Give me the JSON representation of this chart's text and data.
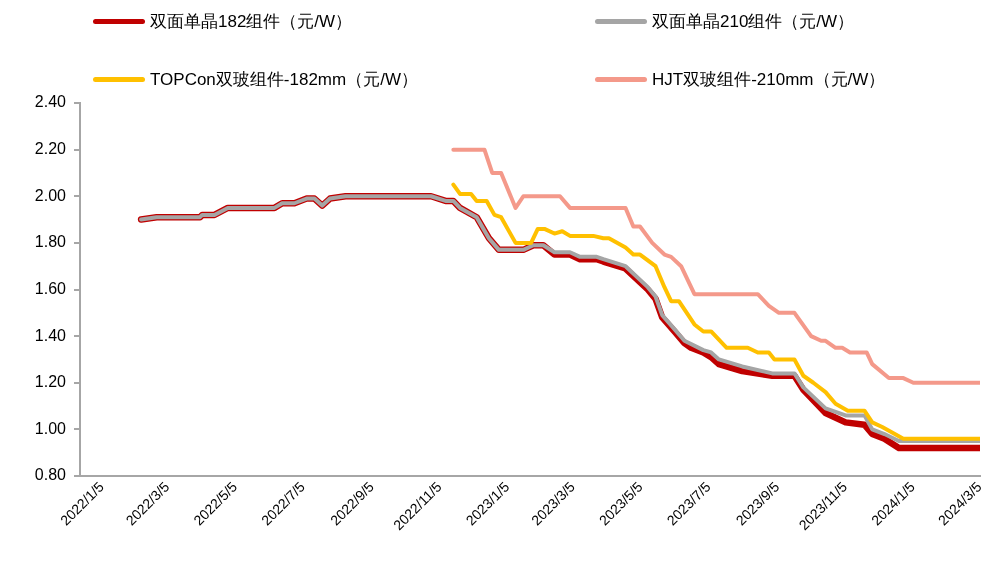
{
  "chart_data": {
    "type": "line",
    "legend": "top",
    "grid": false,
    "marker": "none",
    "line_style": "solid",
    "xlim": [
      "2022-01-05",
      "2024-03-25"
    ],
    "xticks": [
      {
        "value": "2022-01-05",
        "label": "2022/1/5"
      },
      {
        "value": "2022-03-05",
        "label": "2022/3/5"
      },
      {
        "value": "2022-05-05",
        "label": "2022/5/5"
      },
      {
        "value": "2022-07-05",
        "label": "2022/7/5"
      },
      {
        "value": "2022-09-05",
        "label": "2022/9/5"
      },
      {
        "value": "2022-11-05",
        "label": "2022/11/5"
      },
      {
        "value": "2023-01-05",
        "label": "2023/1/5"
      },
      {
        "value": "2023-03-05",
        "label": "2023/3/5"
      },
      {
        "value": "2023-05-05",
        "label": "2023/5/5"
      },
      {
        "value": "2023-07-05",
        "label": "2023/7/5"
      },
      {
        "value": "2023-09-05",
        "label": "2023/9/5"
      },
      {
        "value": "2023-11-05",
        "label": "2023/11/5"
      },
      {
        "value": "2024-01-05",
        "label": "2024/1/5"
      },
      {
        "value": "2024-03-05",
        "label": "2024/3/5"
      }
    ],
    "ylim": [
      0.8,
      2.4
    ],
    "yticks": [
      {
        "value": 0.8,
        "label": "0.80"
      },
      {
        "value": 1.0,
        "label": "1.00"
      },
      {
        "value": 1.2,
        "label": "1.20"
      },
      {
        "value": 1.4,
        "label": "1.40"
      },
      {
        "value": 1.6,
        "label": "1.60"
      },
      {
        "value": 1.8,
        "label": "1.80"
      },
      {
        "value": 2.0,
        "label": "2.00"
      },
      {
        "value": 2.2,
        "label": "2.20"
      },
      {
        "value": 2.4,
        "label": "2.40"
      }
    ],
    "series": [
      {
        "name": "双面单晶182组件（元/W）",
        "color": "#c00000",
        "x": [
          "2022-03-01",
          "2022-03-15",
          "2022-04-23",
          "2022-04-25",
          "2022-05-06",
          "2022-05-18",
          "2022-06-29",
          "2022-07-06",
          "2022-07-17",
          "2022-07-28",
          "2022-08-04",
          "2022-08-11",
          "2022-08-18",
          "2022-09-01",
          "2022-11-17",
          "2022-11-30",
          "2022-12-07",
          "2022-12-13",
          "2022-12-28",
          "2023-01-08",
          "2023-01-17",
          "2023-02-08",
          "2023-02-17",
          "2023-02-26",
          "2023-03-08",
          "2023-03-22",
          "2023-03-31",
          "2023-04-15",
          "2023-04-21",
          "2023-05-11",
          "2023-05-31",
          "2023-06-07",
          "2023-06-13",
          "2023-06-24",
          "2023-07-03",
          "2023-07-09",
          "2023-07-20",
          "2023-07-27",
          "2023-08-03",
          "2023-08-24",
          "2023-09-20",
          "2023-10-10",
          "2023-10-18",
          "2023-11-07",
          "2023-11-25",
          "2023-12-12",
          "2023-12-19",
          "2023-12-30",
          "2024-01-12",
          "2024-03-25"
        ],
        "values": [
          1.9,
          1.91,
          1.91,
          1.92,
          1.92,
          1.95,
          1.95,
          1.97,
          1.97,
          1.99,
          1.99,
          1.96,
          1.99,
          2.0,
          2.0,
          1.98,
          1.98,
          1.95,
          1.91,
          1.82,
          1.77,
          1.77,
          1.79,
          1.79,
          1.75,
          1.75,
          1.73,
          1.73,
          1.72,
          1.69,
          1.6,
          1.56,
          1.48,
          1.42,
          1.37,
          1.35,
          1.33,
          1.31,
          1.28,
          1.25,
          1.23,
          1.23,
          1.17,
          1.07,
          1.03,
          1.02,
          0.98,
          0.96,
          0.92,
          0.92
        ]
      },
      {
        "name": "双面单晶210组件（元/W）",
        "color": "#a5a5a5",
        "x": [
          "2022-03-01",
          "2022-03-15",
          "2022-04-23",
          "2022-04-25",
          "2022-05-06",
          "2022-05-18",
          "2022-06-29",
          "2022-07-06",
          "2022-07-17",
          "2022-07-28",
          "2022-08-04",
          "2022-08-11",
          "2022-08-18",
          "2022-09-01",
          "2022-11-17",
          "2022-11-30",
          "2022-12-07",
          "2022-12-13",
          "2022-12-28",
          "2023-01-08",
          "2023-01-17",
          "2023-02-08",
          "2023-02-17",
          "2023-02-26",
          "2023-03-08",
          "2023-03-22",
          "2023-03-31",
          "2023-04-15",
          "2023-04-21",
          "2023-05-11",
          "2023-05-31",
          "2023-06-07",
          "2023-06-13",
          "2023-06-24",
          "2023-07-03",
          "2023-07-20",
          "2023-07-27",
          "2023-08-03",
          "2023-08-24",
          "2023-09-20",
          "2023-10-10",
          "2023-10-18",
          "2023-11-07",
          "2023-11-25",
          "2023-12-12",
          "2023-12-19",
          "2023-12-30",
          "2024-01-12",
          "2024-03-25"
        ],
        "values": [
          1.9,
          1.91,
          1.91,
          1.92,
          1.92,
          1.95,
          1.95,
          1.97,
          1.97,
          1.99,
          1.99,
          1.96,
          1.99,
          2.0,
          2.0,
          1.98,
          1.98,
          1.95,
          1.91,
          1.82,
          1.77,
          1.77,
          1.79,
          1.79,
          1.76,
          1.76,
          1.74,
          1.74,
          1.73,
          1.7,
          1.61,
          1.57,
          1.49,
          1.43,
          1.38,
          1.34,
          1.33,
          1.3,
          1.27,
          1.24,
          1.24,
          1.18,
          1.09,
          1.06,
          1.06,
          1.0,
          0.98,
          0.95,
          0.95
        ]
      },
      {
        "name": "TOPCon双玻组件-182mm（元/W）",
        "color": "#ffc000",
        "x": [
          "2022-12-07",
          "2022-12-13",
          "2022-12-23",
          "2022-12-28",
          "2023-01-06",
          "2023-01-13",
          "2023-01-19",
          "2023-02-01",
          "2023-02-15",
          "2023-02-21",
          "2023-02-27",
          "2023-03-08",
          "2023-03-15",
          "2023-03-22",
          "2023-04-12",
          "2023-04-21",
          "2023-04-26",
          "2023-05-11",
          "2023-05-18",
          "2023-05-24",
          "2023-06-07",
          "2023-06-15",
          "2023-06-21",
          "2023-06-28",
          "2023-07-12",
          "2023-07-20",
          "2023-07-27",
          "2023-08-10",
          "2023-08-29",
          "2023-09-07",
          "2023-09-17",
          "2023-09-22",
          "2023-10-10",
          "2023-10-18",
          "2023-10-27",
          "2023-11-07",
          "2023-11-16",
          "2023-11-27",
          "2023-12-12",
          "2023-12-19",
          "2023-12-28",
          "2024-01-16",
          "2024-03-25"
        ],
        "values": [
          2.05,
          2.01,
          2.01,
          1.98,
          1.98,
          1.92,
          1.91,
          1.8,
          1.8,
          1.86,
          1.86,
          1.84,
          1.85,
          1.83,
          1.83,
          1.82,
          1.82,
          1.78,
          1.75,
          1.75,
          1.7,
          1.61,
          1.55,
          1.55,
          1.45,
          1.42,
          1.42,
          1.35,
          1.35,
          1.33,
          1.33,
          1.3,
          1.3,
          1.23,
          1.2,
          1.16,
          1.11,
          1.08,
          1.08,
          1.03,
          1.01,
          0.96,
          0.96
        ]
      },
      {
        "name": "HJT双玻组件-210mm（元/W）",
        "color": "#f4998a",
        "x": [
          "2022-12-07",
          "2023-01-04",
          "2023-01-11",
          "2023-01-19",
          "2023-02-01",
          "2023-02-08",
          "2023-03-13",
          "2023-03-22",
          "2023-05-11",
          "2023-05-18",
          "2023-05-24",
          "2023-06-04",
          "2023-06-15",
          "2023-06-21",
          "2023-06-30",
          "2023-07-12",
          "2023-09-07",
          "2023-09-17",
          "2023-09-26",
          "2023-10-10",
          "2023-10-25",
          "2023-11-03",
          "2023-11-07",
          "2023-11-16",
          "2023-11-22",
          "2023-11-29",
          "2023-12-14",
          "2023-12-19",
          "2024-01-03",
          "2024-01-16",
          "2024-01-25",
          "2024-03-25"
        ],
        "values": [
          2.2,
          2.2,
          2.1,
          2.1,
          1.95,
          2.0,
          2.0,
          1.95,
          1.95,
          1.87,
          1.87,
          1.8,
          1.75,
          1.74,
          1.7,
          1.58,
          1.58,
          1.53,
          1.5,
          1.5,
          1.4,
          1.38,
          1.38,
          1.35,
          1.35,
          1.33,
          1.33,
          1.28,
          1.22,
          1.22,
          1.2,
          1.2
        ]
      }
    ]
  }
}
